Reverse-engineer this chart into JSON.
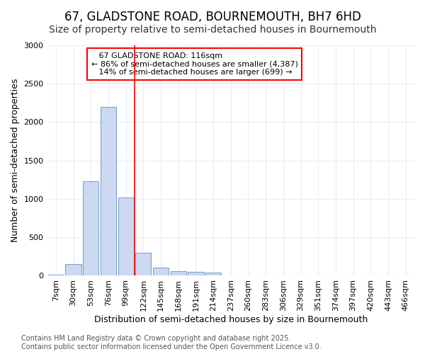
{
  "title": "67, GLADSTONE ROAD, BOURNEMOUTH, BH7 6HD",
  "subtitle": "Size of property relative to semi-detached houses in Bournemouth",
  "xlabel": "Distribution of semi-detached houses by size in Bournemouth",
  "ylabel": "Number of semi-detached properties",
  "footer_line1": "Contains HM Land Registry data © Crown copyright and database right 2025.",
  "footer_line2": "Contains public sector information licensed under the Open Government Licence v3.0.",
  "categories": [
    "7sqm",
    "30sqm",
    "53sqm",
    "76sqm",
    "99sqm",
    "122sqm",
    "145sqm",
    "168sqm",
    "191sqm",
    "214sqm",
    "237sqm",
    "260sqm",
    "283sqm",
    "306sqm",
    "329sqm",
    "351sqm",
    "374sqm",
    "397sqm",
    "420sqm",
    "443sqm",
    "466sqm"
  ],
  "values": [
    10,
    150,
    1230,
    2200,
    1020,
    300,
    105,
    60,
    45,
    35,
    5,
    0,
    0,
    0,
    0,
    0,
    0,
    0,
    0,
    0,
    0
  ],
  "bar_color": "#ccd9f0",
  "bar_edge_color": "#7aa4d0",
  "highlight_color": "#FF0000",
  "highlight_index": 5,
  "property_label": "67 GLADSTONE ROAD: 116sqm",
  "pct_smaller": 86,
  "count_smaller": 4387,
  "pct_larger": 14,
  "count_larger": 699,
  "ylim": [
    0,
    3000
  ],
  "yticks": [
    0,
    500,
    1000,
    1500,
    2000,
    2500,
    3000
  ],
  "background_color": "#ffffff",
  "grid_color": "#e8ecf8",
  "title_fontsize": 12,
  "subtitle_fontsize": 10,
  "axis_label_fontsize": 9,
  "tick_fontsize": 8,
  "annotation_fontsize": 8,
  "footer_fontsize": 7
}
